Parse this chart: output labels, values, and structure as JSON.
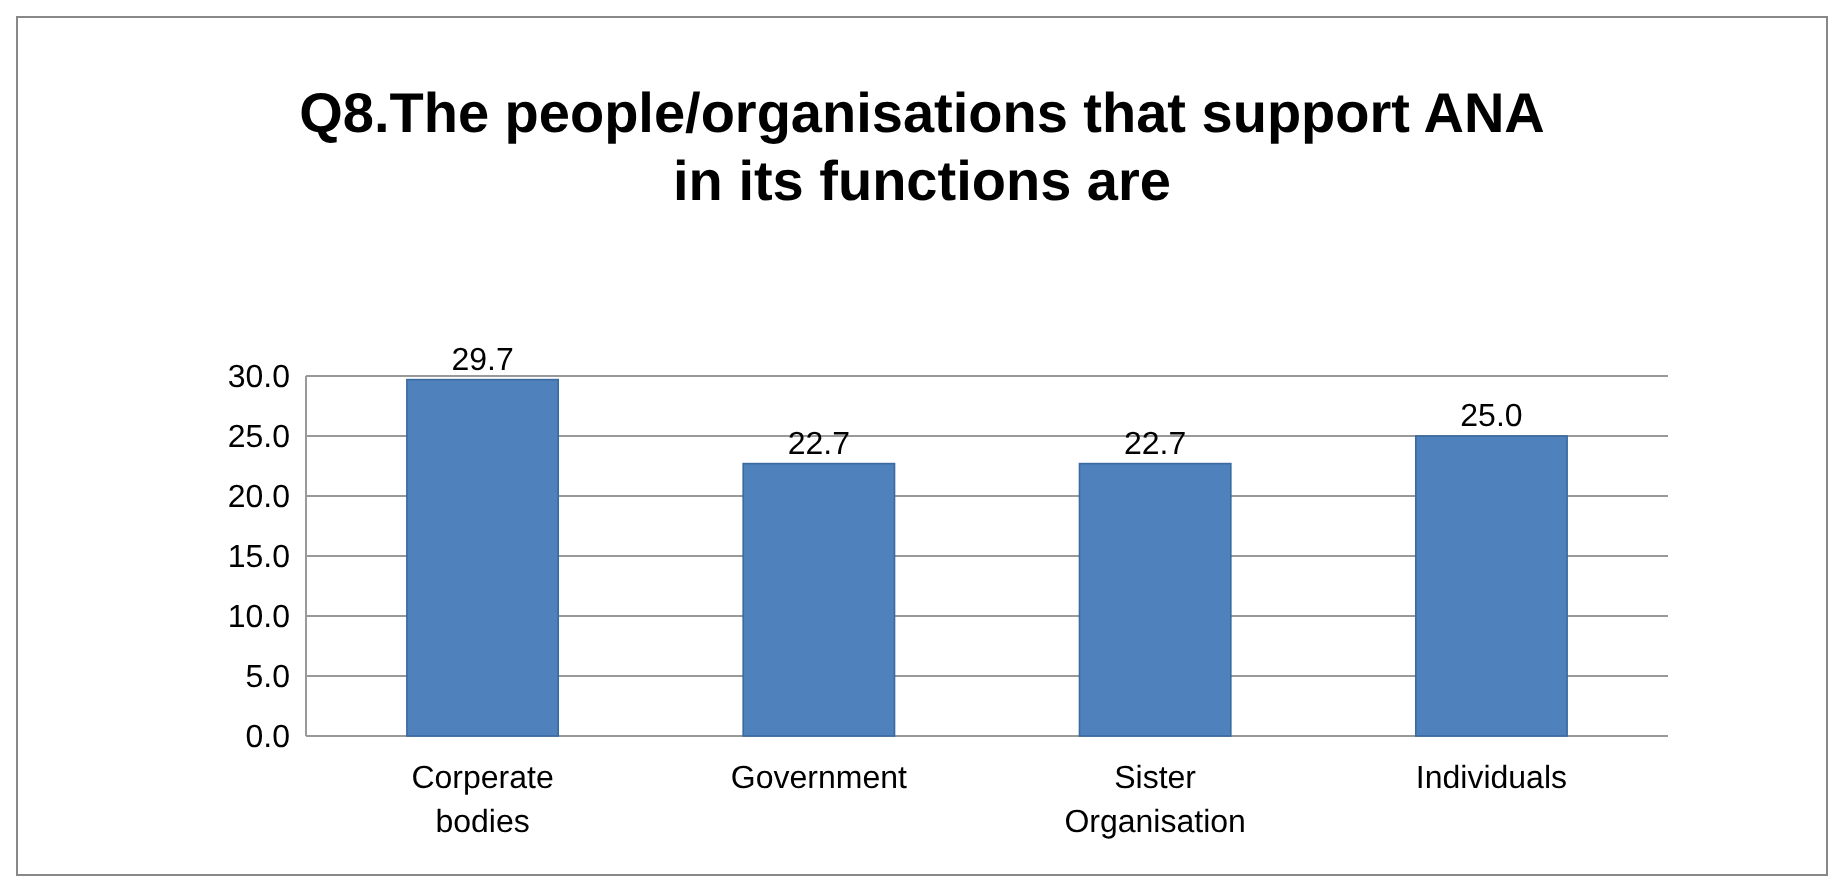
{
  "chart_data": {
    "type": "bar",
    "title": "Q8.The people/organisations that support ANA in its functions are",
    "categories": [
      "Corperate bodies",
      "Government",
      "Sister Organisation",
      "Individuals"
    ],
    "values": [
      29.7,
      22.7,
      22.7,
      25.0
    ],
    "color": "#4f81bd",
    "ylim": [
      0,
      30
    ],
    "yticks": [
      {
        "value": 0,
        "label": "0.0"
      },
      {
        "value": 5,
        "label": "5.0"
      },
      {
        "value": 10,
        "label": "10.0"
      },
      {
        "value": 15,
        "label": "15.0"
      },
      {
        "value": 20,
        "label": "20.0"
      },
      {
        "value": 25,
        "label": "25.0"
      },
      {
        "value": 30,
        "label": "30.0"
      }
    ],
    "grid": "y",
    "value_labels": [
      "29.7",
      "22.7",
      "22.7",
      "25.0"
    ]
  }
}
